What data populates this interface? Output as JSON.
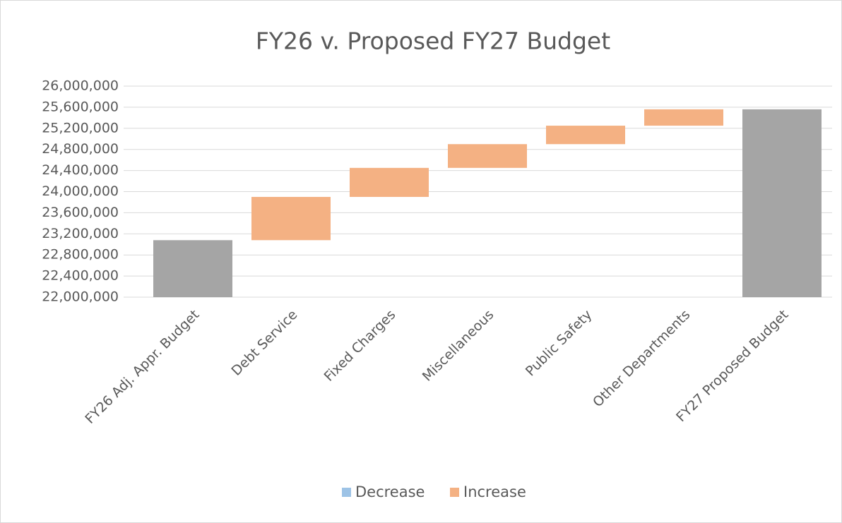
{
  "chart_data": {
    "type": "waterfall",
    "title": "FY26 v. Proposed FY27 Budget",
    "categories": [
      "FY26 Adj. Appr. Budget",
      "Debt Service",
      "Fixed Charges",
      "Miscellaneous",
      "Public Safety",
      "Other Departments",
      "FY27 Proposed Budget"
    ],
    "totals": {
      "color": "#a5a5a5",
      "values": [
        23080000,
        null,
        null,
        null,
        null,
        null,
        25560000
      ]
    },
    "series": [
      {
        "name": "Decrease",
        "color": "#9dc3e6",
        "values": [
          null,
          null,
          null,
          null,
          null,
          null,
          null
        ]
      },
      {
        "name": "Increase",
        "color": "#f4b183",
        "values": [
          null,
          820000,
          550000,
          450000,
          350000,
          310000,
          null
        ]
      }
    ],
    "ylim": [
      22000000,
      26000000
    ],
    "yticks": [
      {
        "value": 22000000,
        "label": "22,000,000"
      },
      {
        "value": 22400000,
        "label": "22,400,000"
      },
      {
        "value": 22800000,
        "label": "22,800,000"
      },
      {
        "value": 23200000,
        "label": "23,200,000"
      },
      {
        "value": 23600000,
        "label": "23,600,000"
      },
      {
        "value": 24000000,
        "label": "24,000,000"
      },
      {
        "value": 24400000,
        "label": "24,400,000"
      },
      {
        "value": 24800000,
        "label": "24,800,000"
      },
      {
        "value": 25200000,
        "label": "25,200,000"
      },
      {
        "value": 25600000,
        "label": "25,600,000"
      },
      {
        "value": 26000000,
        "label": "26,000,000"
      }
    ],
    "grid": true,
    "legend": "bottom"
  }
}
